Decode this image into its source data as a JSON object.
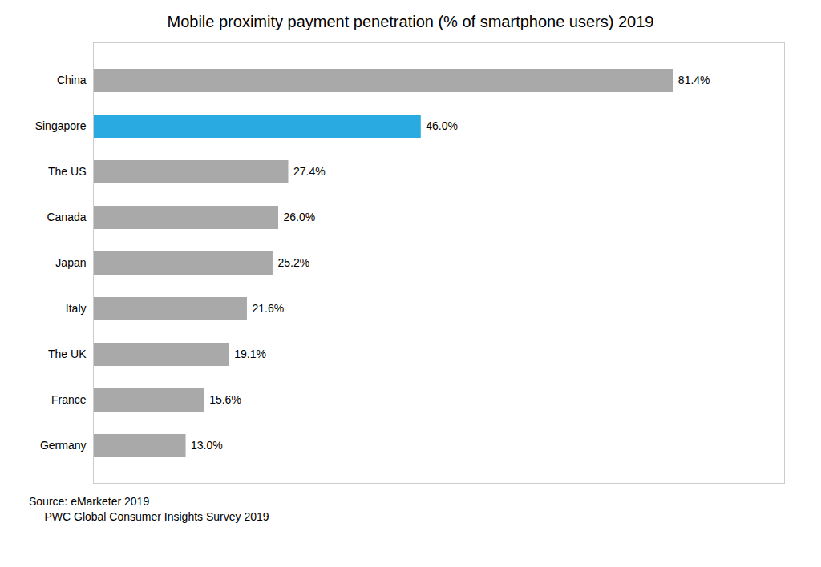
{
  "chart_data": {
    "type": "bar",
    "orientation": "horizontal",
    "title": "Mobile proximity payment penetration (% of smartphone users) 2019",
    "categories": [
      "Germany",
      "France",
      "The UK",
      "Italy",
      "Japan",
      "Canada",
      "The US",
      "Singapore",
      "China"
    ],
    "values": [
      13.0,
      15.6,
      19.1,
      21.6,
      25.2,
      26.0,
      27.4,
      46.0,
      81.4
    ],
    "value_labels": [
      "13.0%",
      "15.6%",
      "19.1%",
      "21.6%",
      "25.2%",
      "26.0%",
      "27.4%",
      "46.0%",
      "81.4%"
    ],
    "data_labels": true,
    "colors": [
      "#a9a9a9",
      "#a9a9a9",
      "#a9a9a9",
      "#a9a9a9",
      "#a9a9a9",
      "#a9a9a9",
      "#a9a9a9",
      "#29abe2",
      "#a9a9a9"
    ],
    "xlim": [
      0,
      97
    ],
    "tick_labels": "y",
    "annotations": [
      "Source: eMarketer 2019",
      "     PWC Global Consumer Insights Survey 2019"
    ]
  }
}
